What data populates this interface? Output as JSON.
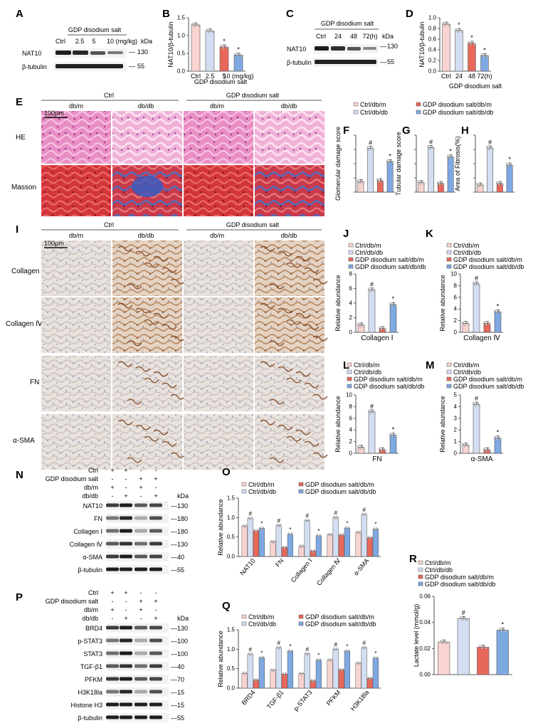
{
  "panels": {
    "A": {
      "letter": "A",
      "treatment": "GDP disodium salt",
      "lanes": [
        "Ctrl",
        "2.5",
        "5",
        "10 (mg/kg)"
      ],
      "kda": "kDa",
      "bands": [
        {
          "name": "NAT10",
          "kda": "130"
        },
        {
          "name": "β-tubulin",
          "kda": "55"
        }
      ]
    },
    "B": {
      "letter": "B",
      "treatment": "GDP disodium salt",
      "chart_data": {
        "type": "bar",
        "ylabel": "NAT10/β-tubulin",
        "categories": [
          "Ctrl",
          "2.5",
          "5",
          "10 (mg/kg)"
        ],
        "values": [
          1.3,
          1.13,
          0.68,
          0.45
        ],
        "ylim": [
          0,
          1.5
        ],
        "yticks": [
          "0.0",
          "0.5",
          "1.0",
          "1.5"
        ],
        "marks": [
          "",
          "",
          "*",
          "*"
        ],
        "colors": [
          "#f8d3cf",
          "#d3def3",
          "#e7685a",
          "#7ea8e1"
        ]
      }
    },
    "C": {
      "letter": "C",
      "treatment": "GDP disodium salt",
      "lanes": [
        "Ctrl",
        "24",
        "48",
        "72(h)"
      ],
      "kda": "kDa",
      "bands": [
        {
          "name": "NAT10",
          "kda": "130"
        },
        {
          "name": "β-tubulin",
          "kda": "55"
        }
      ]
    },
    "D": {
      "letter": "D",
      "treatment": "GDP disodium salt",
      "chart_data": {
        "type": "bar",
        "ylabel": "NAT10/β-tubulin",
        "categories": [
          "Ctrl",
          "24",
          "48",
          "72(h)"
        ],
        "values": [
          0.88,
          0.76,
          0.52,
          0.29
        ],
        "ylim": [
          0,
          1.0
        ],
        "yticks": [
          "0.0",
          "0.2",
          "0.4",
          "0.6",
          "0.8",
          "1.0"
        ],
        "marks": [
          "",
          "*",
          "*",
          "*"
        ],
        "colors": [
          "#f8d3cf",
          "#d3def3",
          "#e7685a",
          "#7ea8e1"
        ]
      }
    },
    "E": {
      "letter": "E",
      "groups": [
        "Ctrl",
        "GDP disodium salt"
      ],
      "columns": [
        "db/m",
        "db/db",
        "db/m",
        "db/db"
      ],
      "rows": [
        "HE",
        "Masson"
      ],
      "scale": "100μm"
    },
    "FGH_legend": [
      "Ctrl/db/m",
      "Ctrl/db/db",
      "GDP disodium salt/db/m",
      "GDP disodium salt/db/db"
    ],
    "F": {
      "letter": "F",
      "chart_data": {
        "type": "bar",
        "ylabel": "Glomerular damage score",
        "values": [
          0.55,
          2.3,
          0.6,
          1.6
        ],
        "ylim": [
          0,
          3
        ],
        "yticks": [],
        "marks": [
          "",
          "#",
          "",
          "*"
        ]
      }
    },
    "G": {
      "letter": "G",
      "chart_data": {
        "type": "bar",
        "ylabel": "Tubular damage score",
        "values": [
          0.5,
          2.35,
          0.45,
          1.85
        ],
        "ylim": [
          0,
          3
        ],
        "yticks": [],
        "marks": [
          "",
          "#",
          "",
          "*"
        ]
      }
    },
    "H": {
      "letter": "H",
      "chart_data": {
        "type": "bar",
        "ylabel": "Area of Fibrosis(%)",
        "values": [
          5,
          31,
          6,
          19
        ],
        "ylim": [
          0,
          40
        ],
        "yticks": [],
        "marks": [
          "",
          "#",
          "",
          "*"
        ]
      }
    },
    "I": {
      "letter": "I",
      "groups": [
        "Ctrl",
        "GDP disodium salt"
      ],
      "columns": [
        "db/m",
        "db/db",
        "db/m",
        "db/db"
      ],
      "rows": [
        "Collagen Ⅰ",
        "Collagen Ⅳ",
        "FN",
        "α-SMA"
      ],
      "scale": "100μm"
    },
    "JKLM_legend": [
      "Ctrl/db/m",
      "Ctrl/db/db",
      "GDP disodium salt/db/m",
      "GDP disodium salt/db/db"
    ],
    "J": {
      "letter": "J",
      "chart_data": {
        "type": "bar",
        "ylabel": "Relative abundance",
        "xlabel": "Collagen Ⅰ",
        "values": [
          1,
          5.8,
          0.5,
          3.8
        ],
        "ylim": [
          0,
          8
        ],
        "yticks": [
          "0",
          "2",
          "4",
          "6",
          "8"
        ],
        "marks": [
          "",
          "#",
          "",
          "*"
        ]
      }
    },
    "K": {
      "letter": "K",
      "chart_data": {
        "type": "bar",
        "ylabel": "Relative abundance",
        "xlabel": "Collagen Ⅳ",
        "values": [
          1.5,
          8.3,
          1.5,
          3.5
        ],
        "ylim": [
          0,
          10
        ],
        "yticks": [
          "0",
          "2",
          "4",
          "6",
          "8",
          "10"
        ],
        "marks": [
          "",
          "#",
          "",
          "*"
        ]
      }
    },
    "L": {
      "letter": "L",
      "chart_data": {
        "type": "bar",
        "ylabel": "Relative abundance",
        "xlabel": "FN",
        "values": [
          1,
          7.1,
          0.6,
          3.1
        ],
        "ylim": [
          0,
          10
        ],
        "yticks": [
          "0",
          "2",
          "4",
          "6",
          "8",
          "10"
        ],
        "marks": [
          "",
          "#",
          "",
          "*"
        ]
      }
    },
    "M": {
      "letter": "M",
      "chart_data": {
        "type": "bar",
        "ylabel": "Relative abundance",
        "xlabel": "α-SMA",
        "values": [
          0.7,
          4.2,
          0.3,
          1.3
        ],
        "ylim": [
          0,
          5
        ],
        "yticks": [
          "0",
          "1",
          "2",
          "3",
          "4",
          "5"
        ],
        "marks": [
          "",
          "#",
          "",
          "*"
        ]
      }
    },
    "N": {
      "letter": "N",
      "cond_rows": [
        {
          "label": "Ctrl",
          "signs": [
            "+",
            "+",
            "-",
            "-"
          ]
        },
        {
          "label": "GDP disodium salt",
          "signs": [
            "-",
            "-",
            "+",
            "+"
          ]
        },
        {
          "label": "db/m",
          "signs": [
            "+",
            "-",
            "+",
            "-"
          ]
        },
        {
          "label": "db/db",
          "signs": [
            "-",
            "+",
            "-",
            "+"
          ]
        }
      ],
      "kda": "kDa",
      "bands": [
        {
          "name": "NAT10",
          "kda": "130"
        },
        {
          "name": "FN",
          "kda": "180"
        },
        {
          "name": "Collagen Ⅰ",
          "kda": "180"
        },
        {
          "name": "Collagen Ⅳ",
          "kda": "130"
        },
        {
          "name": "α-SMA",
          "kda": "40"
        },
        {
          "name": "β-tubulin",
          "kda": "55"
        }
      ]
    },
    "O": {
      "letter": "O",
      "legend": [
        "Ctrl/db/m",
        "Ctrl/db/db",
        "GDP disodium salt/db/m",
        "GDP disodium salt/db/db"
      ],
      "chart_data": {
        "type": "bar",
        "ylabel": "Relative abundance",
        "categories": [
          "NAT10",
          "FN",
          "Collagen Ⅰ",
          "Collagen Ⅳ",
          "α-SMA"
        ],
        "ylim": [
          0,
          1.5
        ],
        "yticks": [
          "0.0",
          "0.5",
          "1.0",
          "1.5"
        ],
        "series": [
          {
            "name": "Ctrl/db/m",
            "values": [
              0.78,
              0.38,
              0.26,
              0.56,
              0.62
            ]
          },
          {
            "name": "Ctrl/db/db",
            "values": [
              0.98,
              0.8,
              0.92,
              1.0,
              1.08
            ]
          },
          {
            "name": "GDP disodium salt/db/m",
            "values": [
              0.66,
              0.23,
              0.14,
              0.55,
              0.48
            ]
          },
          {
            "name": "GDP disodium salt/db/db",
            "values": [
              0.72,
              0.57,
              0.53,
              0.73,
              0.7
            ]
          }
        ],
        "marks": [
          [
            "",
            "#",
            "",
            "*"
          ],
          [
            "",
            "#",
            "",
            "*"
          ],
          [
            "",
            "#",
            "",
            "*"
          ],
          [
            "",
            "#",
            "",
            "*"
          ],
          [
            "",
            "#",
            "",
            "*"
          ]
        ]
      }
    },
    "P": {
      "letter": "P",
      "cond_rows": [
        {
          "label": "Ctrl",
          "signs": [
            "+",
            "+",
            "-",
            "-"
          ]
        },
        {
          "label": "GDP disodium salt",
          "signs": [
            "-",
            "-",
            "+",
            "+"
          ]
        },
        {
          "label": "db/m",
          "signs": [
            "+",
            "-",
            "+",
            "-"
          ]
        },
        {
          "label": "db/db",
          "signs": [
            "-",
            "+",
            "-",
            "+"
          ]
        }
      ],
      "kda": "kDa",
      "bands": [
        {
          "name": "BRD4",
          "kda": "130"
        },
        {
          "name": "p-STAT3",
          "kda": "100"
        },
        {
          "name": "STAT3",
          "kda": "100"
        },
        {
          "name": "TGF-β1",
          "kda": "40"
        },
        {
          "name": "PFKM",
          "kda": "70"
        },
        {
          "name": "H3K18la",
          "kda": "15"
        },
        {
          "name": "Histone H3",
          "kda": "15"
        },
        {
          "name": "β-tubulin",
          "kda": "55"
        }
      ]
    },
    "Q": {
      "letter": "Q",
      "legend": [
        "Ctrl/db/m",
        "Ctrl/db/db",
        "GDP disodium salt/db/m",
        "GDP disodium salt/db/db"
      ],
      "chart_data": {
        "type": "bar",
        "ylabel": "Relative abundance",
        "categories": [
          "BRD4",
          "TGF-β1",
          "p-STAT3",
          "PFKM",
          "H3K18la"
        ],
        "ylim": [
          0,
          1.5
        ],
        "yticks": [
          "0.0",
          "0.5",
          "1.0",
          "1.5"
        ],
        "series": [
          {
            "name": "Ctrl/db/m",
            "values": [
              0.38,
              0.46,
              0.37,
              0.72,
              0.64
            ]
          },
          {
            "name": "Ctrl/db/db",
            "values": [
              0.87,
              1.04,
              0.88,
              1.0,
              1.04
            ]
          },
          {
            "name": "GDP disodium salt/db/m",
            "values": [
              0.21,
              0.36,
              0.19,
              0.47,
              0.25
            ]
          },
          {
            "name": "GDP disodium salt/db/db",
            "values": [
              0.78,
              0.95,
              0.72,
              0.95,
              0.77
            ]
          }
        ],
        "marks": [
          [
            "",
            "#",
            "",
            "*"
          ],
          [
            "",
            "#",
            "",
            "*"
          ],
          [
            "",
            "#",
            "",
            "*"
          ],
          [
            "",
            "#",
            "",
            "*"
          ],
          [
            "",
            "#",
            "",
            "*"
          ]
        ]
      }
    },
    "R": {
      "letter": "R",
      "legend": [
        "Ctrl/db/m",
        "Ctrl/db/db",
        "GDP disodium salt/db/m",
        "GDP disodium salt/db/db"
      ],
      "chart_data": {
        "type": "bar",
        "ylabel": "Lactate level (mmol/g)",
        "values": [
          0.025,
          0.043,
          0.021,
          0.034
        ],
        "ylim": [
          0,
          0.06
        ],
        "yticks": [
          "0.00",
          "0.02",
          "0.04",
          "0.06"
        ],
        "marks": [
          "",
          "#",
          "",
          "*"
        ]
      }
    }
  },
  "colors": {
    "ctrl_dbm": "#f8d3cf",
    "ctrl_dbdb": "#d3def3",
    "gdp_dbm": "#e7685a",
    "gdp_dbdb": "#7ea8e1"
  }
}
